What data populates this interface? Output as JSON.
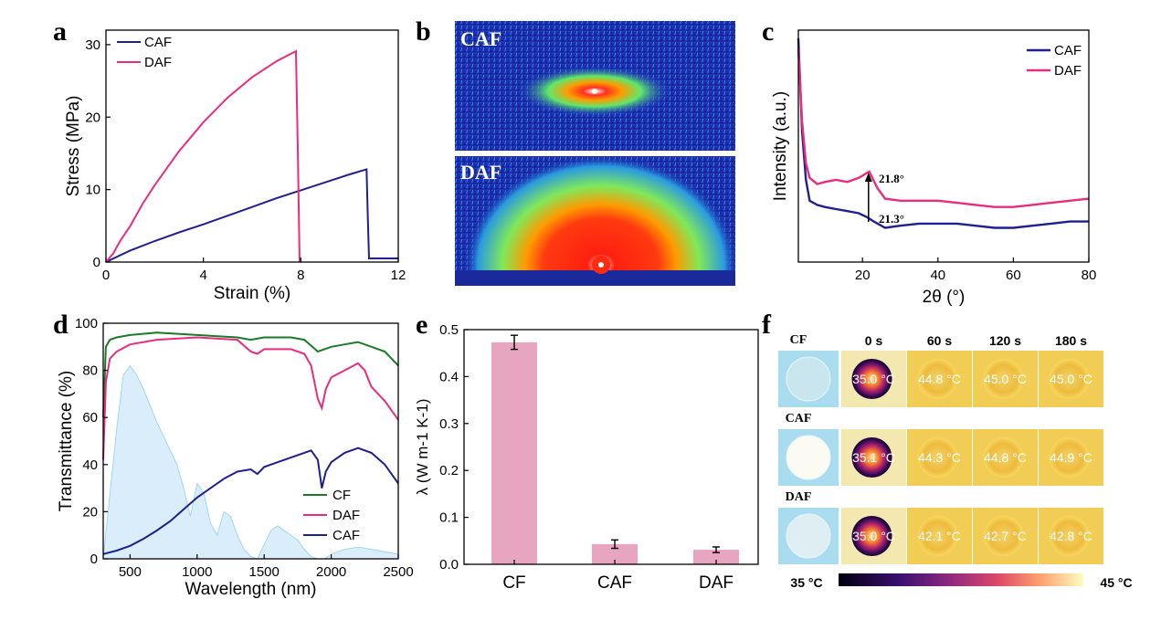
{
  "panels": {
    "a": "a",
    "b": "b",
    "c": "c",
    "d": "d",
    "e": "e",
    "f": "f"
  },
  "colors": {
    "CAF": "#1f1f8f",
    "DAF": "#ea2c7d",
    "CF": "#1b7a2a",
    "bar": "#e8a5bf",
    "solar": "#bfe3f7"
  },
  "chart_data": [
    {
      "panel": "a",
      "type": "line",
      "xlabel": "Strain (%)",
      "ylabel": "Stress (MPa)",
      "xlim": [
        0,
        12
      ],
      "ylim": [
        0,
        32
      ],
      "xticks": [
        0,
        4,
        8,
        12
      ],
      "yticks": [
        0,
        10,
        20,
        30
      ],
      "legend": "top-left",
      "series": [
        {
          "name": "CAF",
          "color": "#1f1f8f",
          "x": [
            0,
            0.5,
            1,
            2,
            3,
            4,
            5,
            6,
            7,
            8,
            9,
            10,
            10.7,
            10.75,
            10.8,
            12
          ],
          "y": [
            0,
            0.8,
            1.6,
            2.9,
            4.1,
            5.2,
            6.4,
            7.6,
            8.8,
            9.9,
            11.0,
            12.1,
            12.8,
            6.0,
            0.5,
            0.5
          ]
        },
        {
          "name": "DAF",
          "color": "#ea2c7d",
          "x": [
            0,
            0.3,
            0.6,
            1,
            1.5,
            2,
            3,
            4,
            5,
            6,
            7,
            7.8,
            7.88,
            7.95
          ],
          "y": [
            0,
            1.2,
            3.0,
            5.0,
            8.0,
            10.6,
            15.3,
            19.3,
            22.7,
            25.5,
            27.7,
            29.1,
            15.0,
            0
          ]
        }
      ]
    },
    {
      "panel": "c",
      "type": "line",
      "xlabel": "2θ (°)",
      "ylabel": "Intensity (a.u.)",
      "xlim": [
        3,
        80
      ],
      "xticks": [
        20,
        40,
        60,
        80
      ],
      "legend": "top-right",
      "annotations": [
        "21.8°",
        "21.3°"
      ],
      "series": [
        {
          "name": "CAF",
          "color": "#1f1f8f",
          "x": [
            3,
            4,
            5,
            6,
            8,
            10,
            13,
            16,
            19,
            21.3,
            23,
            26,
            30,
            35,
            40,
            45,
            50,
            55,
            60,
            65,
            70,
            75,
            80
          ],
          "y": [
            1.0,
            0.55,
            0.32,
            0.22,
            0.2,
            0.19,
            0.18,
            0.17,
            0.16,
            0.14,
            0.12,
            0.09,
            0.1,
            0.11,
            0.11,
            0.11,
            0.1,
            0.09,
            0.09,
            0.1,
            0.11,
            0.12,
            0.12
          ]
        },
        {
          "name": "DAF",
          "color": "#ea2c7d",
          "x": [
            3,
            4,
            5,
            6,
            8,
            10,
            13,
            16,
            19,
            21.8,
            24,
            26,
            30,
            35,
            40,
            45,
            50,
            55,
            60,
            65,
            70,
            75,
            80
          ],
          "y": [
            0.95,
            0.6,
            0.4,
            0.33,
            0.3,
            0.31,
            0.32,
            0.31,
            0.33,
            0.36,
            0.28,
            0.23,
            0.22,
            0.22,
            0.22,
            0.21,
            0.2,
            0.19,
            0.19,
            0.2,
            0.21,
            0.22,
            0.23
          ]
        }
      ]
    },
    {
      "panel": "d",
      "type": "line",
      "xlabel": "Wavelength (nm)",
      "ylabel": "Transmittance (%)",
      "xlim": [
        300,
        2500
      ],
      "ylim": [
        0,
        100
      ],
      "xticks": [
        500,
        1000,
        1500,
        2000,
        2500
      ],
      "yticks": [
        0,
        20,
        40,
        60,
        80,
        100
      ],
      "legend": "bottom-right",
      "series": [
        {
          "name": "CF",
          "color": "#1b7a2a",
          "x": [
            300,
            320,
            350,
            400,
            500,
            700,
            1000,
            1300,
            1400,
            1500,
            1700,
            1800,
            1900,
            1950,
            2000,
            2100,
            2200,
            2300,
            2400,
            2500
          ],
          "y": [
            60,
            90,
            93,
            94,
            95,
            96,
            95,
            94,
            93,
            94,
            94,
            93,
            88,
            89,
            90,
            91,
            92,
            90,
            88,
            82
          ]
        },
        {
          "name": "DAF",
          "color": "#ea2c7d",
          "x": [
            300,
            320,
            350,
            400,
            500,
            700,
            1000,
            1300,
            1400,
            1450,
            1500,
            1700,
            1800,
            1850,
            1900,
            1930,
            1960,
            2000,
            2100,
            2200,
            2250,
            2300,
            2400,
            2500
          ],
          "y": [
            42,
            75,
            85,
            88,
            91,
            93,
            94,
            93,
            88,
            87,
            89,
            89,
            87,
            82,
            68,
            64,
            72,
            77,
            80,
            83,
            80,
            73,
            67,
            59
          ]
        },
        {
          "name": "CAF",
          "color": "#1f1f8f",
          "x": [
            300,
            400,
            500,
            600,
            700,
            800,
            900,
            1000,
            1100,
            1200,
            1300,
            1400,
            1450,
            1500,
            1600,
            1700,
            1800,
            1850,
            1900,
            1930,
            1960,
            2000,
            2100,
            2200,
            2300,
            2400,
            2500
          ],
          "y": [
            2,
            3.5,
            5.5,
            8.5,
            12,
            16,
            21,
            26,
            30,
            34,
            37,
            38,
            36,
            39,
            41,
            43,
            45,
            46,
            42,
            30,
            37,
            41,
            45,
            47,
            45,
            40,
            32
          ]
        }
      ],
      "background_spectrum": {
        "x": [
          300,
          400,
          450,
          500,
          550,
          600,
          650,
          700,
          750,
          800,
          850,
          900,
          950,
          1000,
          1050,
          1100,
          1150,
          1200,
          1250,
          1300,
          1350,
          1400,
          1450,
          1500,
          1550,
          1600,
          1650,
          1700,
          1750,
          1800,
          1850,
          1900,
          1950,
          2000,
          2100,
          2200,
          2300,
          2400,
          2500
        ],
        "y": [
          0,
          55,
          78,
          82,
          78,
          72,
          65,
          58,
          52,
          46,
          40,
          30,
          18,
          32,
          28,
          15,
          10,
          20,
          18,
          10,
          4,
          1,
          0,
          6,
          12,
          14,
          12,
          10,
          8,
          4,
          1,
          0,
          0,
          2,
          4,
          5,
          4,
          3,
          2
        ]
      }
    },
    {
      "panel": "e",
      "type": "bar",
      "ylabel": "λ (W m-1 K-1)",
      "categories": [
        "CF",
        "CAF",
        "DAF"
      ],
      "values": [
        0.473,
        0.043,
        0.031
      ],
      "errors": [
        0.015,
        0.009,
        0.006
      ],
      "ylim": [
        0,
        0.5
      ],
      "yticks": [
        0.0,
        0.1,
        0.2,
        0.3,
        0.4,
        0.5
      ]
    }
  ],
  "panel_b": {
    "labels": [
      "CAF",
      "DAF"
    ]
  },
  "panel_f": {
    "time_headers": [
      "0 s",
      "60 s",
      "120 s",
      "180 s"
    ],
    "rows": [
      {
        "label": "CF",
        "temps": [
          "35.0 °C",
          "44.8 °C",
          "45.0 °C",
          "45.0 °C"
        ]
      },
      {
        "label": "CAF",
        "temps": [
          "35.1 °C",
          "44.3 °C",
          "44.8 °C",
          "44.9 °C"
        ]
      },
      {
        "label": "DAF",
        "temps": [
          "35.0 °C",
          "42.1 °C",
          "42.7 °C",
          "42.8 °C"
        ]
      }
    ],
    "colorbar_min": "35 °C",
    "colorbar_max": "45 °C"
  }
}
